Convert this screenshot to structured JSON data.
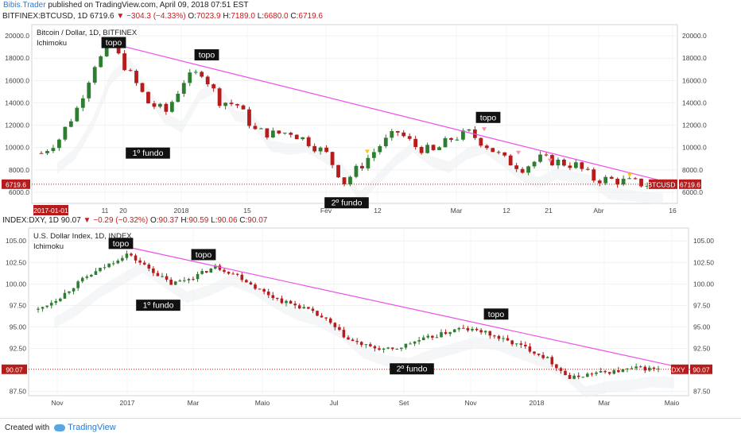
{
  "header": {
    "author": "Bibis.Trader",
    "published": "published on TradingView.com, April 09, 2018 07:51 EST"
  },
  "top_ticker": {
    "symbol": "BITFINEX:BTCUSD, 1D",
    "last": "6719.6",
    "change": "▼ −304.3 (−4.33%)",
    "o_label": "O:",
    "o_val": "7023.9",
    "h_label": "H:",
    "h_val": "7189.0",
    "l_label": "L:",
    "l_val": "6680.0",
    "c_label": "C:",
    "c_val": "6719.6"
  },
  "bottom_ticker": {
    "symbol": "INDEX:DXY, 1D",
    "last": "90.07",
    "change": "▼ −0.29 (−0.32%)",
    "o_label": "O:",
    "o_val": "90.37",
    "h_label": "H:",
    "h_val": "90.59",
    "l_label": "L:",
    "l_val": "90.06",
    "c_label": "C:",
    "c_val": "90.07"
  },
  "footer": {
    "created_with": "Created with",
    "brand": "TradingView"
  },
  "colors": {
    "up": "#2e7d32",
    "down": "#b71c1c",
    "trendline": "#f04ee6",
    "price_line": "#b71c1c",
    "signal_down": "#f48fb1",
    "signal_yellow": "#f9c31a"
  },
  "chart_data": [
    {
      "type": "candlestick",
      "title": "Bitcoin / Dollar, 1D, BITFINEX",
      "indicator": "Ichimoku",
      "ylim": [
        5000,
        21000
      ],
      "yticks": [
        "20000.0",
        "18000.0",
        "16000.0",
        "14000.0",
        "12000.0",
        "10000.0",
        "8000.0",
        "6000.0"
      ],
      "yticks_right": [
        "20000.0",
        "18000.0",
        "16000.0",
        "14000.0",
        "12000.0",
        "10000.0",
        "8000.0",
        "6000.0"
      ],
      "xticks": [
        "11",
        "20",
        "2018",
        "15",
        "Fev",
        "12",
        "Mar",
        "12",
        "21",
        "Abr",
        "16"
      ],
      "x_start_label": "2017-01-01",
      "last_price": "6719.6",
      "last_symbol": "BTCUSD",
      "series": [
        {
          "name": "BTCUSD",
          "values": [
            9500,
            10800,
            13500,
            17500,
            19000,
            16500,
            14000,
            13200,
            16000,
            16800,
            14200,
            13800,
            11500,
            11200,
            11400,
            10500,
            9400,
            6900,
            8500,
            10200,
            11400,
            10100,
            9600,
            10800,
            11300,
            10200,
            8900,
            8200,
            9000,
            8700,
            8400,
            7200,
            7100,
            6900,
            6719.6
          ]
        }
      ],
      "annotations": [
        "topo",
        "topo",
        "1º fundo",
        "2º fundo",
        "topo"
      ]
    },
    {
      "type": "candlestick",
      "title": "U.S. Dollar Index, 1D, INDEX",
      "indicator": "Ichimoku",
      "ylim": [
        87,
        106.5
      ],
      "yticks": [
        "105.00",
        "102.50",
        "100.00",
        "97.50",
        "95.00",
        "92.50",
        "87.50"
      ],
      "yticks_right": [
        "105.00",
        "102.50",
        "100.00",
        "97.50",
        "95.00",
        "92.50",
        "87.50"
      ],
      "xticks": [
        "Nov",
        "2017",
        "Mar",
        "Maio",
        "Jul",
        "Set",
        "Nov",
        "2018",
        "Mar",
        "Maio"
      ],
      "last_price": "90.07",
      "last_symbol": "DXY",
      "series": [
        {
          "name": "DXY",
          "values": [
            97.0,
            98.5,
            100.5,
            102.0,
            103.5,
            101.8,
            100.0,
            100.8,
            102.0,
            101.0,
            99.3,
            98.0,
            97.2,
            95.8,
            93.5,
            92.6,
            92.3,
            93.3,
            94.0,
            94.8,
            94.5,
            93.5,
            92.6,
            91.3,
            89.0,
            89.6,
            89.8,
            90.2,
            90.07
          ]
        }
      ],
      "annotations": [
        "topo",
        "topo",
        "1º fundo",
        "2º fundo",
        "topo"
      ]
    }
  ]
}
